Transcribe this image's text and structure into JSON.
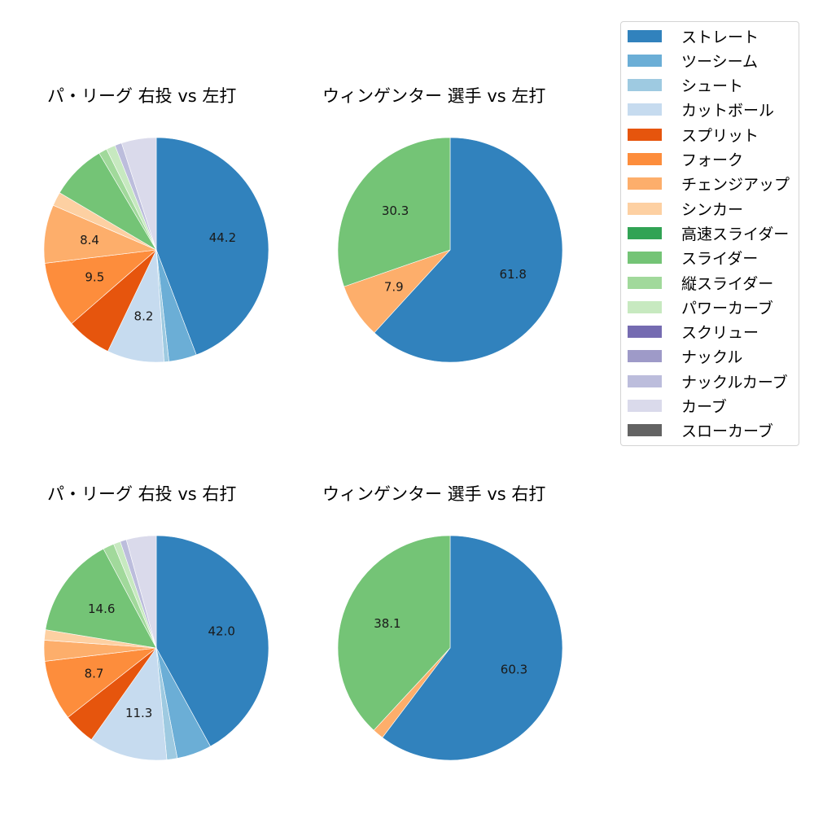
{
  "legend": {
    "items": [
      {
        "label": "ストレート",
        "color": "#3182bd"
      },
      {
        "label": "ツーシーム",
        "color": "#6baed6"
      },
      {
        "label": "シュート",
        "color": "#9ecae1"
      },
      {
        "label": "カットボール",
        "color": "#c6dbef"
      },
      {
        "label": "スプリット",
        "color": "#e6550d"
      },
      {
        "label": "フォーク",
        "color": "#fd8d3c"
      },
      {
        "label": "チェンジアップ",
        "color": "#fdae6b"
      },
      {
        "label": "シンカー",
        "color": "#fdd0a2"
      },
      {
        "label": "高速スライダー",
        "color": "#31a354"
      },
      {
        "label": "スライダー",
        "color": "#74c476"
      },
      {
        "label": "縦スライダー",
        "color": "#a1d99b"
      },
      {
        "label": "パワーカーブ",
        "color": "#c7e9c0"
      },
      {
        "label": "スクリュー",
        "color": "#756bb1"
      },
      {
        "label": "ナックル",
        "color": "#9e9ac8"
      },
      {
        "label": "ナックルカーブ",
        "color": "#bcbddc"
      },
      {
        "label": "カーブ",
        "color": "#dadaeb"
      },
      {
        "label": "スローカーブ",
        "color": "#636363"
      }
    ]
  },
  "charts": [
    {
      "title": "パ・リーグ 右投 vs 左打"
    },
    {
      "title": "ウィンゲンター 選手 vs 左打"
    },
    {
      "title": "パ・リーグ 右投 vs 右打"
    },
    {
      "title": "ウィンゲンター 選手 vs 右打"
    }
  ],
  "chart_data": [
    {
      "type": "pie",
      "title": "パ・リーグ 右投 vs 左打",
      "categories": [
        "ストレート",
        "ツーシーム",
        "シュート",
        "カットボール",
        "スプリット",
        "フォーク",
        "チェンジアップ",
        "シンカー",
        "高速スライダー",
        "スライダー",
        "縦スライダー",
        "パワーカーブ",
        "スクリュー",
        "ナックル",
        "ナックルカーブ",
        "カーブ",
        "スローカーブ"
      ],
      "values": [
        44.2,
        4.0,
        0.7,
        8.2,
        6.5,
        9.5,
        8.4,
        2.0,
        0,
        8.0,
        1.2,
        1.3,
        0,
        0,
        1.0,
        5.0,
        0
      ],
      "labels_shown": {
        "ストレート": "44.2",
        "カットボール": "8.2",
        "フォーク": "9.5",
        "チェンジアップ": "8.4"
      },
      "start_angle": 90,
      "direction": "clockwise"
    },
    {
      "type": "pie",
      "title": "ウィンゲンター 選手 vs 左打",
      "categories": [
        "ストレート",
        "チェンジアップ",
        "スライダー"
      ],
      "values": [
        61.8,
        7.9,
        30.3
      ],
      "labels_shown": {
        "ストレート": "61.8",
        "チェンジアップ": "7.9",
        "スライダー": "30.3"
      },
      "start_angle": 90,
      "direction": "clockwise"
    },
    {
      "type": "pie",
      "title": "パ・リーグ 右投 vs 右打",
      "categories": [
        "ストレート",
        "ツーシーム",
        "シュート",
        "カットボール",
        "スプリット",
        "フォーク",
        "チェンジアップ",
        "シンカー",
        "高速スライダー",
        "スライダー",
        "縦スライダー",
        "パワーカーブ",
        "スクリュー",
        "ナックル",
        "ナックルカーブ",
        "カーブ",
        "スローカーブ"
      ],
      "values": [
        42.0,
        5.0,
        1.5,
        11.3,
        4.6,
        8.7,
        3.0,
        1.5,
        0,
        14.6,
        1.6,
        1.0,
        0,
        0,
        0.9,
        4.3,
        0
      ],
      "labels_shown": {
        "ストレート": "42.0",
        "カットボール": "11.3",
        "フォーク": "8.7",
        "スライダー": "14.6"
      },
      "start_angle": 90,
      "direction": "clockwise"
    },
    {
      "type": "pie",
      "title": "ウィンゲンター 選手 vs 右打",
      "categories": [
        "ストレート",
        "チェンジアップ",
        "スライダー"
      ],
      "values": [
        60.3,
        1.6,
        38.1
      ],
      "labels_shown": {
        "ストレート": "60.3",
        "スライダー": "38.1"
      },
      "start_angle": 90,
      "direction": "clockwise"
    }
  ]
}
